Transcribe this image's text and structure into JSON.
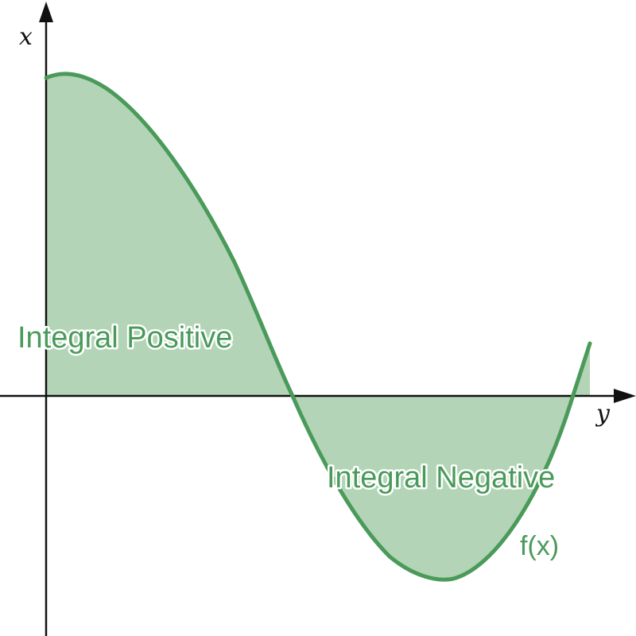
{
  "labels": {
    "x_axis": "x",
    "y_axis": "y",
    "positive_region": "Integral Positive",
    "negative_region": "Integral Negative",
    "function": "f(x)"
  },
  "colors": {
    "curve": "#4a9a5a",
    "fill": "#b3d4b7",
    "axis": "#111111"
  }
}
